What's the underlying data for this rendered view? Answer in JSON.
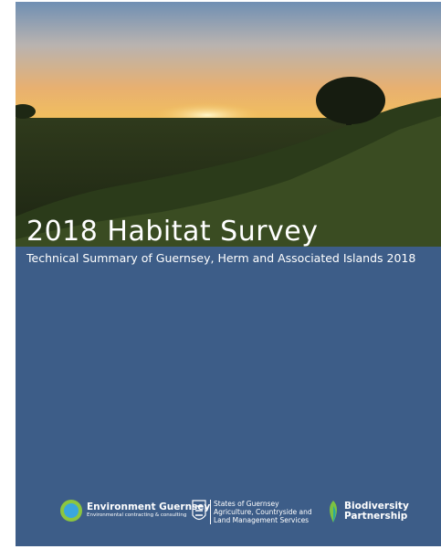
{
  "header": {
    "title": "2018 Habitat Survey",
    "subtitle": "Technical Summary of Guernsey, Herm and Associated Islands 2018"
  },
  "logos": [
    {
      "lines": [
        "Environment Guernsey",
        "Environmental contracting & consulting"
      ]
    },
    {
      "lines": [
        "States of Guernsey",
        "Agriculture, Countryside and",
        "Land Management Services"
      ]
    },
    {
      "lines": [
        "Biodiversity",
        "Partnership"
      ]
    }
  ]
}
